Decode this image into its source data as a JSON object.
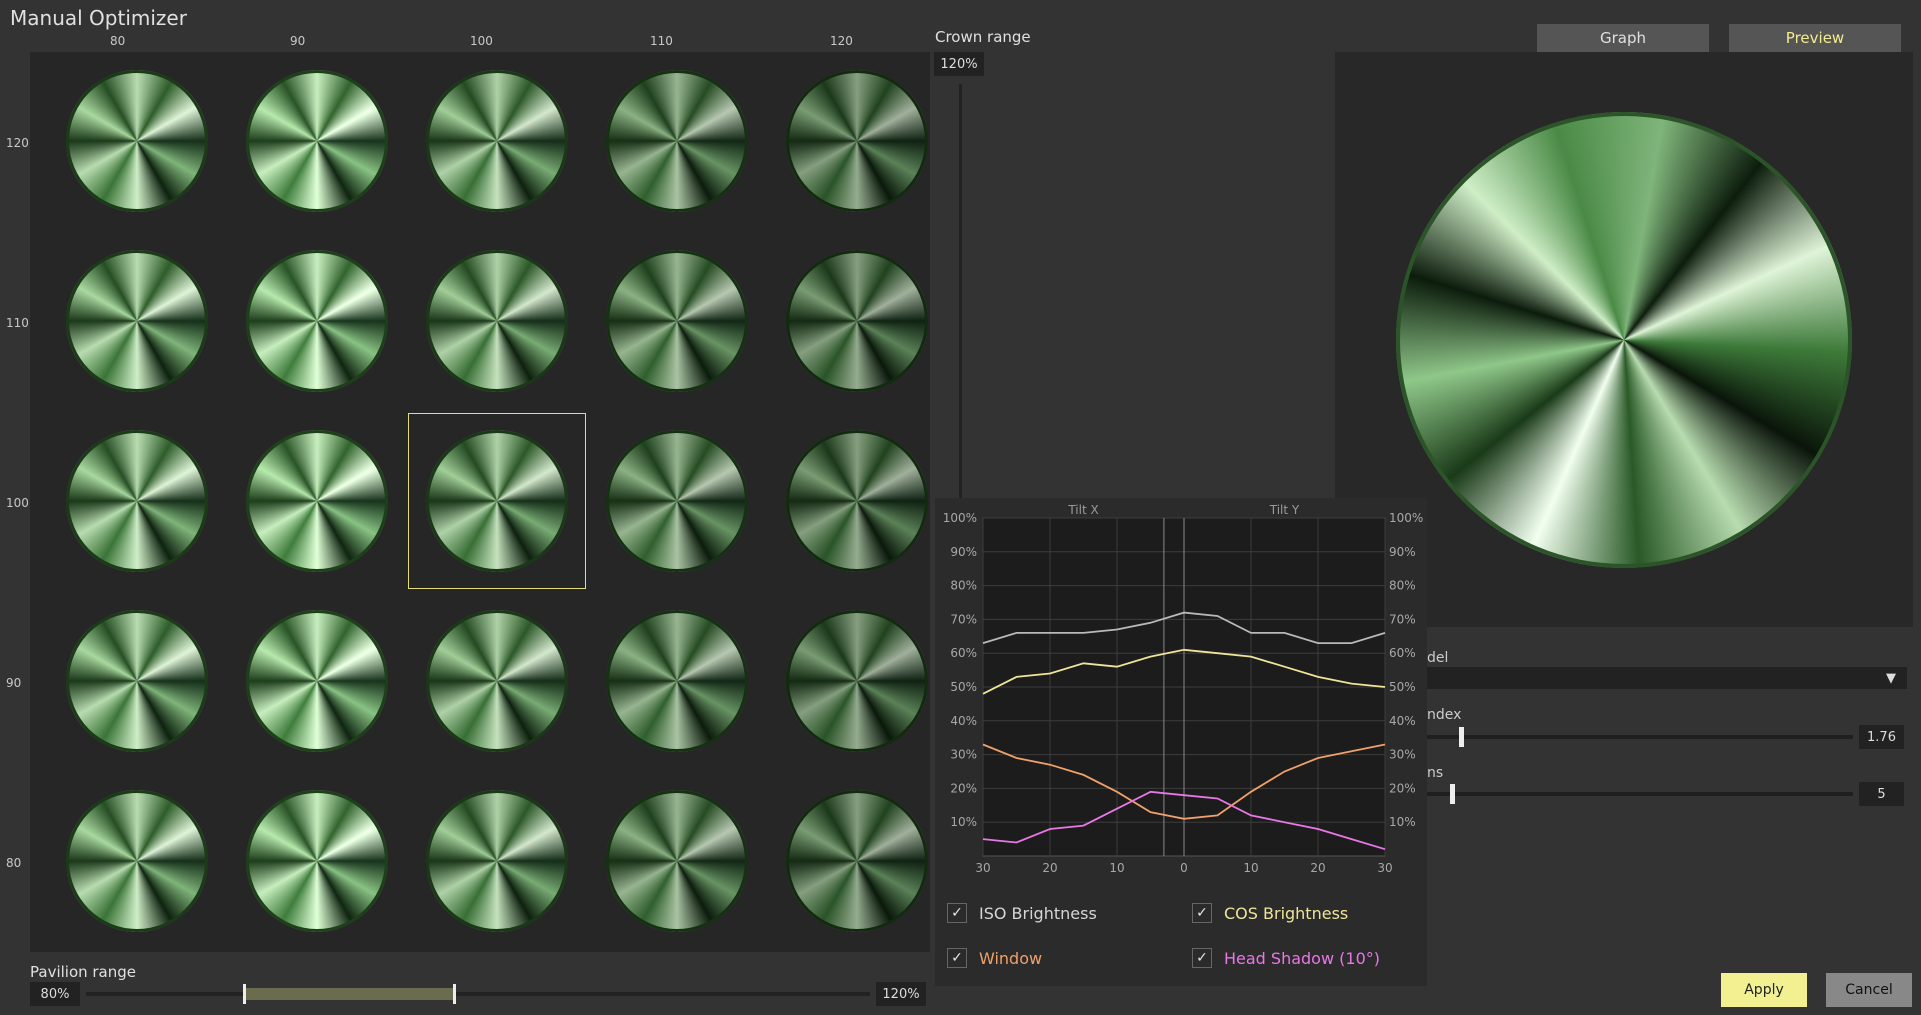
{
  "window": {
    "title": "Manual Optimizer"
  },
  "grid": {
    "column_labels": [
      "80",
      "90",
      "100",
      "110",
      "120"
    ],
    "row_labels": [
      "120",
      "110",
      "100",
      "90",
      "80"
    ],
    "selected": {
      "row_label": "100",
      "column_label": "100"
    }
  },
  "crown_range": {
    "label": "Crown range",
    "max": "120%"
  },
  "pavilion_range": {
    "label": "Pavilion range",
    "min": "80%",
    "max": "120%"
  },
  "tabs": {
    "graph": "Graph",
    "preview": "Preview",
    "active": "Preview"
  },
  "properties": {
    "model_label_visible": "del",
    "index_label_visible": "ndex",
    "index_value": "1.76",
    "index_level": 0.09,
    "third_label_visible": "ns",
    "third_value": "5",
    "third_level": 0.07
  },
  "buttons": {
    "apply": "Apply",
    "cancel": "Cancel"
  },
  "chart_data": {
    "type": "line",
    "section_labels": [
      "Tilt X",
      "Tilt Y"
    ],
    "x_tick_labels": [
      "30",
      "20",
      "10",
      "0",
      "10",
      "20",
      "30"
    ],
    "y_tick_labels": [
      "10%",
      "20%",
      "30%",
      "40%",
      "50%",
      "60%",
      "70%",
      "80%",
      "90%",
      "100%"
    ],
    "ylim": [
      0,
      100
    ],
    "x": [
      -30,
      -25,
      -20,
      -15,
      -10,
      -5,
      0,
      5,
      10,
      15,
      20,
      25,
      30
    ],
    "series": [
      {
        "name": "ISO Brightness",
        "color": "#b9b9b9",
        "values": [
          63,
          66,
          66,
          66,
          67,
          69,
          72,
          71,
          66,
          66,
          63,
          63,
          66
        ]
      },
      {
        "name": "COS Brightness",
        "color": "#efe59a",
        "values": [
          48,
          53,
          54,
          57,
          56,
          59,
          61,
          60,
          59,
          56,
          53,
          51,
          50
        ]
      },
      {
        "name": "Window",
        "color": "#f0a06a",
        "values": [
          33,
          29,
          27,
          24,
          19,
          13,
          11,
          12,
          19,
          25,
          29,
          31,
          33
        ]
      },
      {
        "name": "Head Shadow (10°)",
        "color": "#e977e6",
        "values": [
          5,
          4,
          8,
          9,
          14,
          19,
          18,
          17,
          12,
          10,
          8,
          5,
          2
        ]
      }
    ],
    "legend": [
      "ISO Brightness",
      "COS Brightness",
      "Window",
      "Head Shadow (10°)"
    ],
    "legend_position": "bottom",
    "checked": [
      true,
      true,
      true,
      true
    ]
  }
}
